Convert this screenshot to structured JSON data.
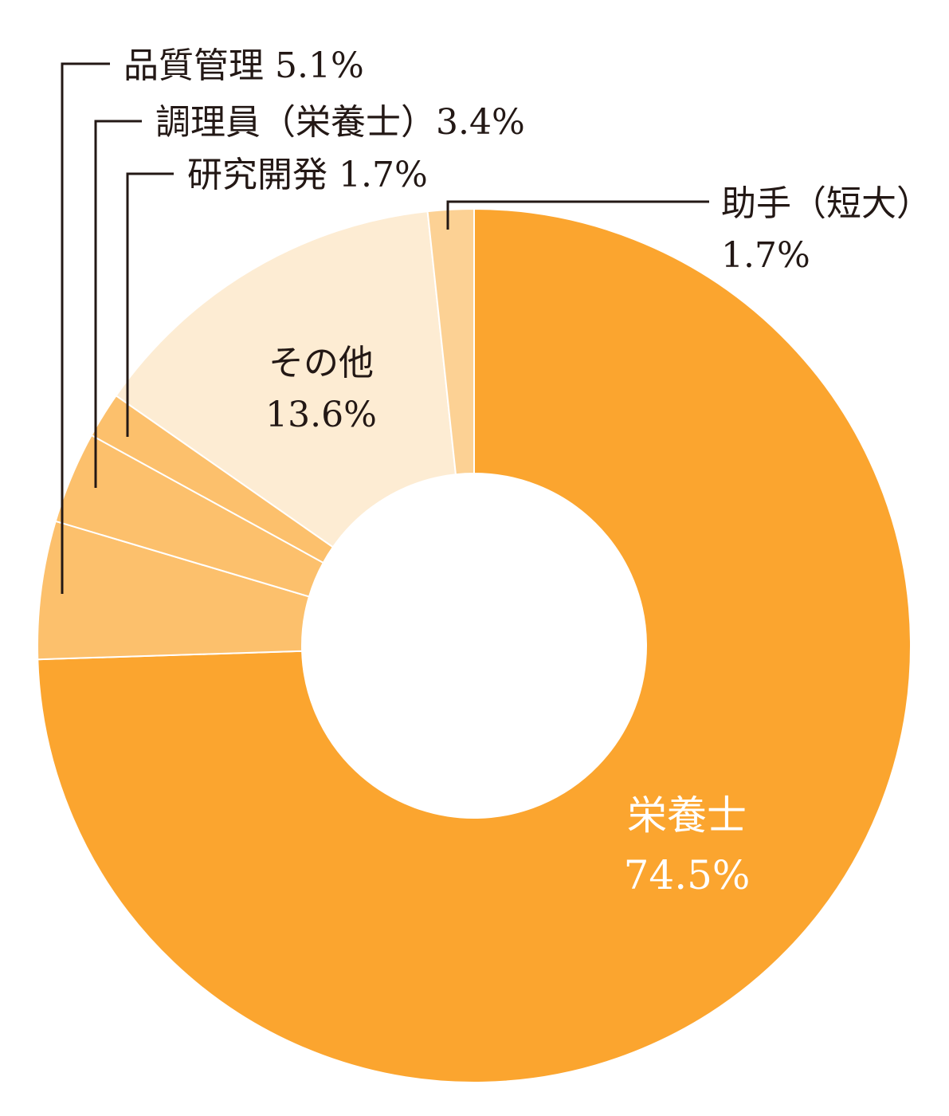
{
  "chart_data": {
    "type": "pie",
    "style": "donut",
    "start_angle_note": "clockwise from top",
    "slices": [
      {
        "name": "栄養士",
        "label": "栄養士",
        "value_label": "74.5%",
        "value": 74.5,
        "color": "#fba52f"
      },
      {
        "name": "品質管理",
        "label": "品質管理",
        "value_label": "5.1%",
        "value": 5.1,
        "color": "#fcc06c"
      },
      {
        "name": "調理員（栄養士）",
        "label": "調理員（栄養士）",
        "value_label": "3.4%",
        "value": 3.4,
        "color": "#fcc06c"
      },
      {
        "name": "研究開発",
        "label": "研究開発",
        "value_label": "1.7%",
        "value": 1.7,
        "color": "#fcc06c"
      },
      {
        "name": "その他",
        "label": "その他",
        "value_label": "13.6%",
        "value": 13.6,
        "color": "#fdecd3"
      },
      {
        "name": "助手（短大）",
        "label": "助手（短大）",
        "value_label": "1.7%",
        "value": 1.7,
        "color": "#fcd194"
      }
    ]
  },
  "labels": {
    "eiyoushi_name": "栄養士",
    "eiyoushi_value": "74.5%",
    "hinshitsu": "品質管理 5.1%",
    "chouriin": "調理員（栄養士）3.4%",
    "kenkyu": "研究開発 1.7%",
    "sonota_name": "その他",
    "sonota_value": "13.6%",
    "joshu_name": "助手（短大）",
    "joshu_value": "1.7%"
  }
}
